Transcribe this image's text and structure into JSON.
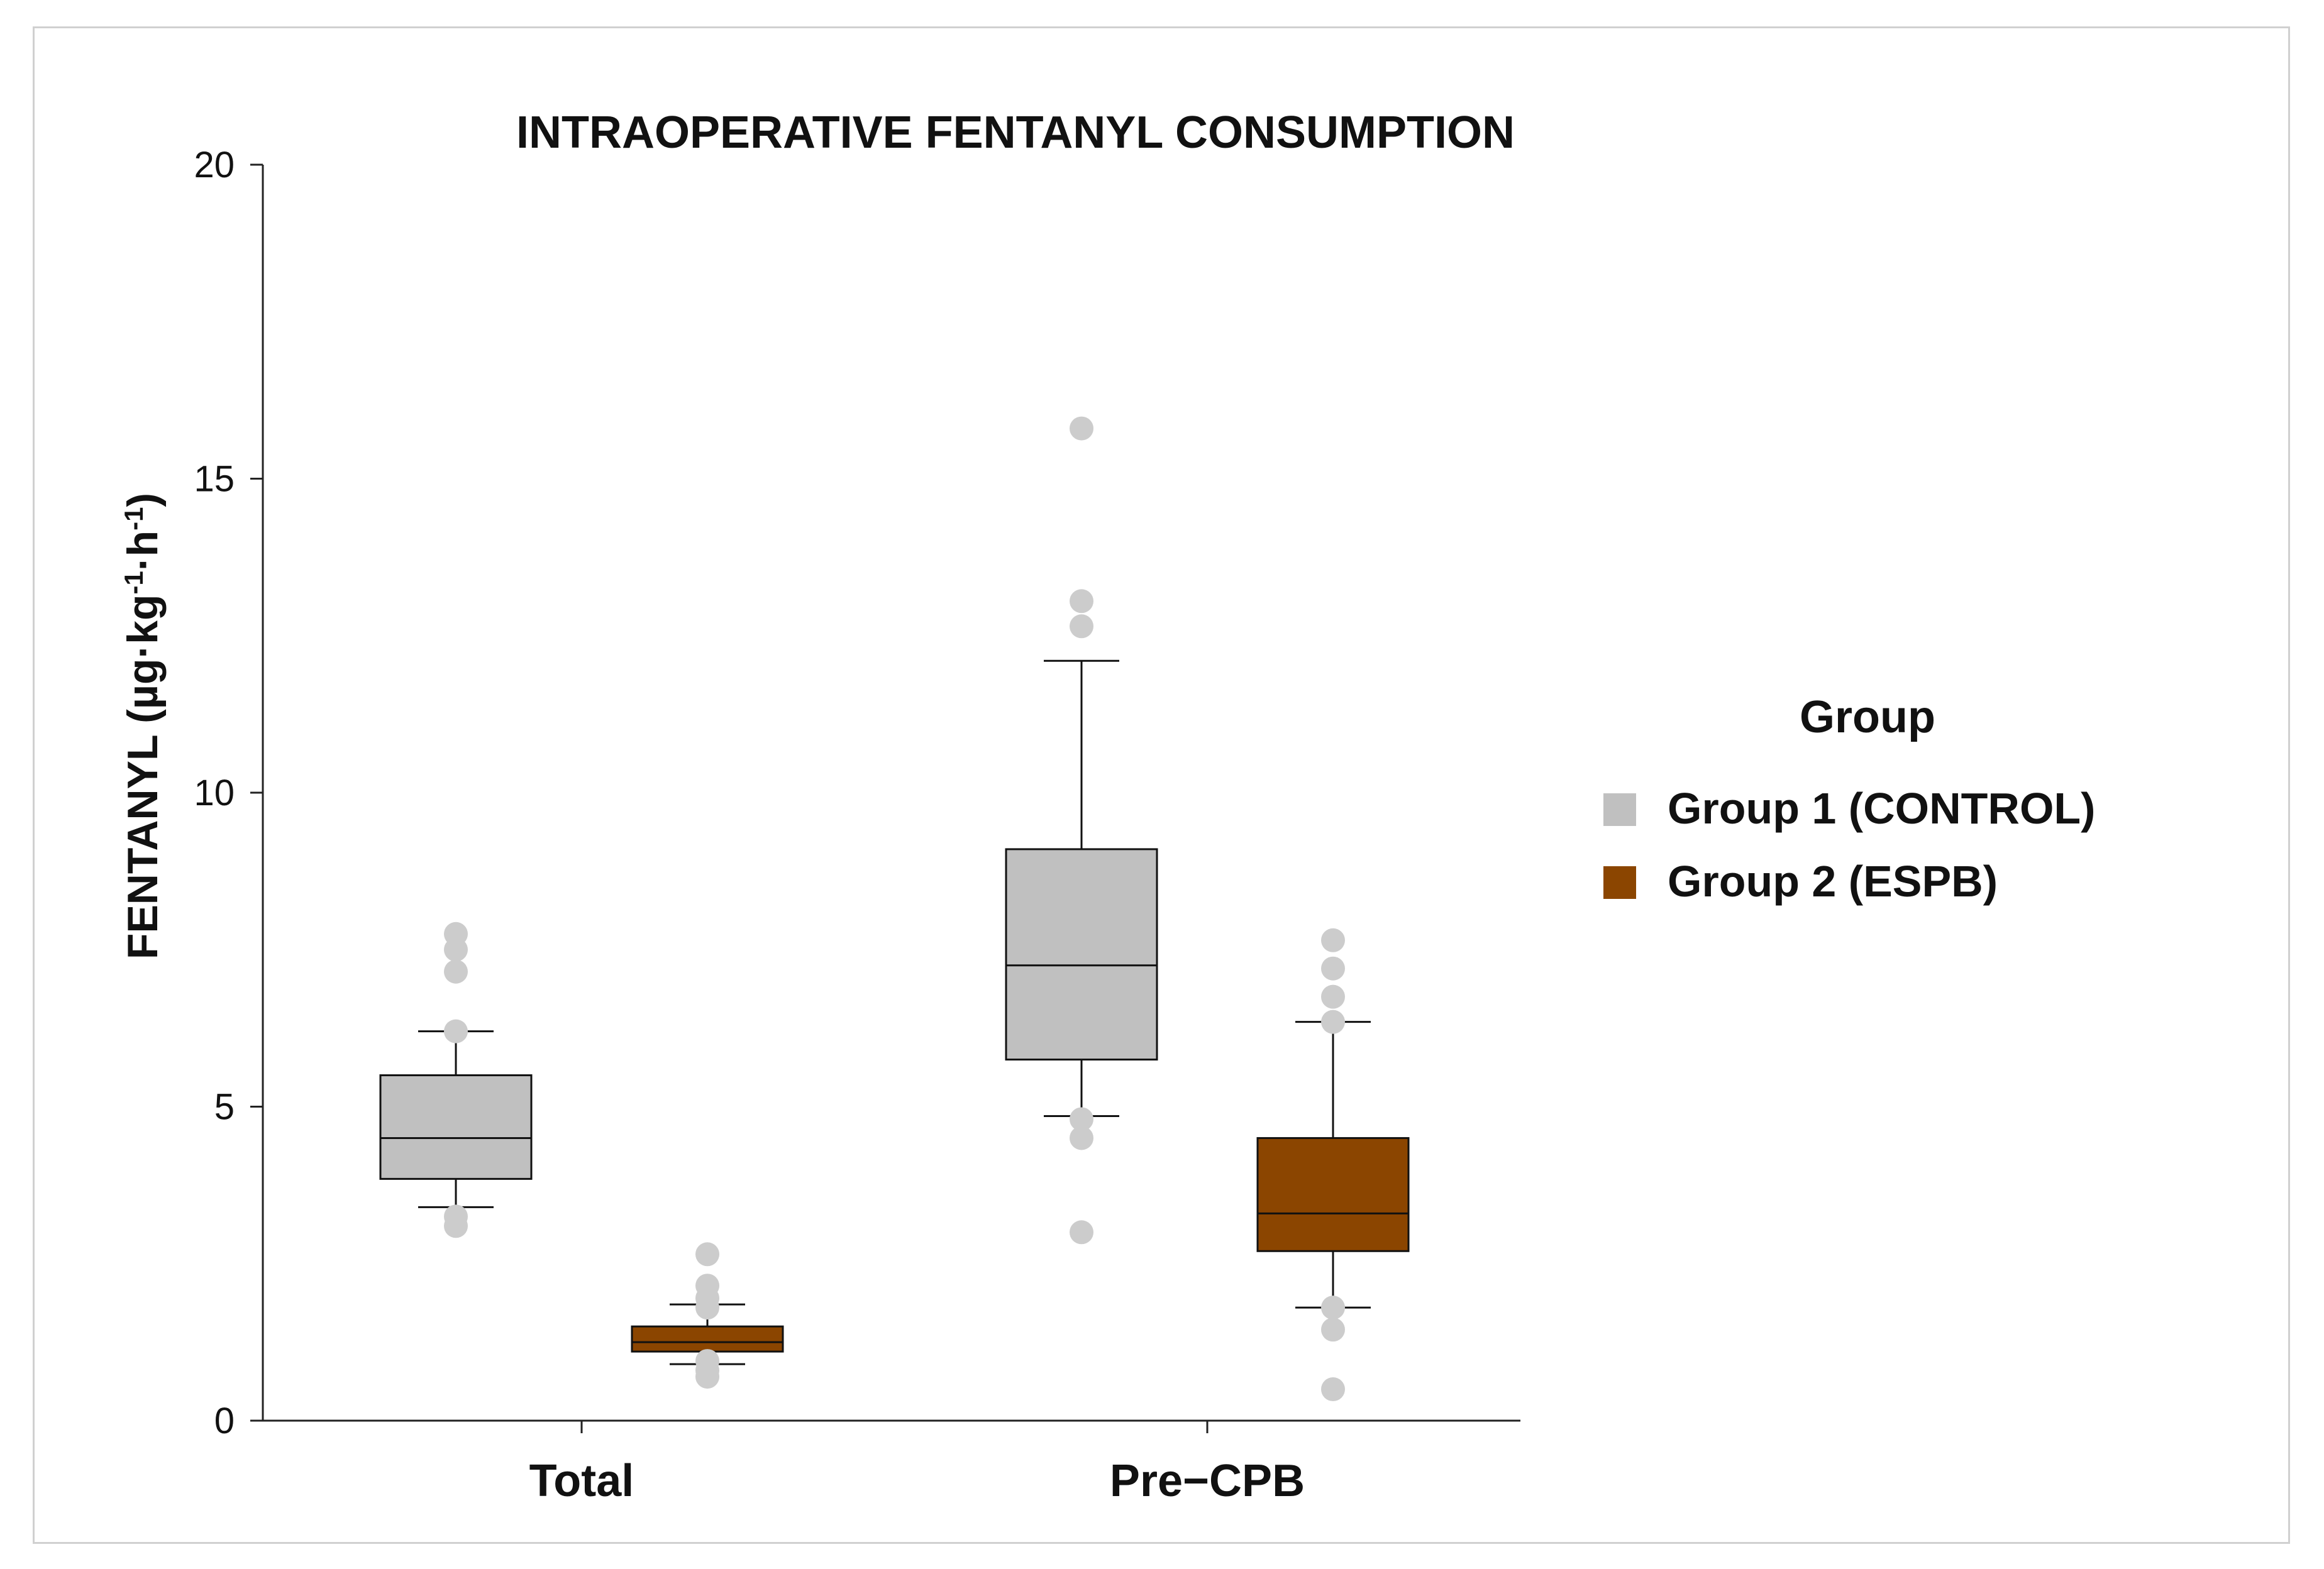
{
  "chart_data": {
    "type": "box",
    "title": "INTRAOPERATIVE FENTANYL CONSUMPTION",
    "ylabel": "FENTANYL (µg·kg",
    "ylabel_sup1": "-1",
    "ylabel_mid": "·h",
    "ylabel_sup2": "-1",
    "ylabel_end": ")",
    "xlabel": "",
    "ylim": [
      0,
      20
    ],
    "yticks": [
      0,
      5,
      10,
      15,
      20
    ],
    "grid": false,
    "categories": [
      "Total",
      "Pre−CPB"
    ],
    "legend": {
      "title": "Group",
      "position": "right",
      "entries": [
        "Group 1 (CONTROL)",
        "Group 2 (ESPB)"
      ]
    },
    "series": [
      {
        "name": "Group 1 (CONTROL)",
        "color": "#c0c0c0",
        "outlier_color": "#cccccc",
        "boxes": [
          {
            "category": "Total",
            "whisker_low": 3.4,
            "q1": 3.85,
            "median": 4.5,
            "q3": 5.5,
            "whisker_high": 6.2,
            "outliers": [
              3.1,
              3.25,
              6.2,
              7.15,
              7.5,
              7.75
            ]
          },
          {
            "category": "Pre−CPB",
            "whisker_low": 4.85,
            "q1": 5.75,
            "median": 7.25,
            "q3": 9.1,
            "whisker_high": 12.1,
            "outliers": [
              3.0,
              4.5,
              4.8,
              12.65,
              13.05,
              15.8
            ]
          }
        ]
      },
      {
        "name": "Group 2 (ESPB)",
        "color": "#8b4500",
        "outlier_color": "#cccccc",
        "boxes": [
          {
            "category": "Total",
            "whisker_low": 0.9,
            "q1": 1.1,
            "median": 1.25,
            "q3": 1.5,
            "whisker_high": 1.85,
            "outliers": [
              0.7,
              0.8,
              0.95,
              1.8,
              1.95,
              2.15,
              2.65
            ]
          },
          {
            "category": "Pre−CPB",
            "whisker_low": 1.8,
            "q1": 2.7,
            "median": 3.3,
            "q3": 4.5,
            "whisker_high": 6.35,
            "outliers": [
              0.5,
              1.45,
              1.8,
              6.35,
              6.75,
              7.2,
              7.65
            ]
          }
        ]
      }
    ]
  }
}
